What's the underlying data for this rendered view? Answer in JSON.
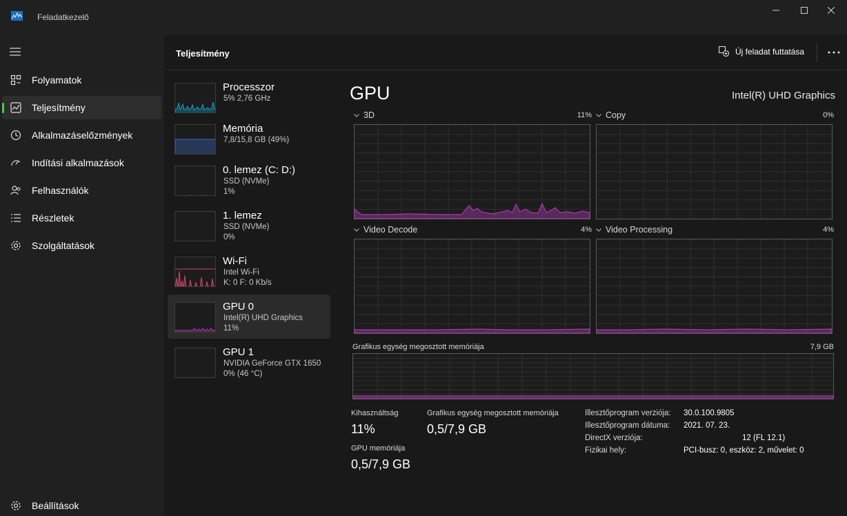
{
  "window": {
    "title": "Feladatkezelő"
  },
  "nav": {
    "items": [
      {
        "label": "Folyamatok",
        "icon": "processes-grid-icon"
      },
      {
        "label": "Teljesítmény",
        "icon": "performance-chart-icon",
        "active": true
      },
      {
        "label": "Alkalmazáselőzmények",
        "icon": "history-clock-icon"
      },
      {
        "label": "Indítási alkalmazások",
        "icon": "startup-gauge-icon"
      },
      {
        "label": "Felhasználók",
        "icon": "users-icon"
      },
      {
        "label": "Részletek",
        "icon": "details-list-icon"
      },
      {
        "label": "Szolgáltatások",
        "icon": "services-gear-icon"
      }
    ],
    "settings_label": "Beállítások"
  },
  "header": {
    "title": "Teljesítmény",
    "run_task_label": "Új feladat futtatása"
  },
  "resources": [
    {
      "name": "Processzor",
      "line1": "5% 2,76 GHz",
      "line2": ""
    },
    {
      "name": "Memória",
      "line1": "7,8/15,8 GB (49%)",
      "line2": ""
    },
    {
      "name": "0. lemez (C: D:)",
      "line1": "SSD (NVMe)",
      "line2": "1%"
    },
    {
      "name": "1. lemez",
      "line1": "SSD (NVMe)",
      "line2": "0%"
    },
    {
      "name": "Wi-Fi",
      "line1": "Intel Wi-Fi",
      "line2": "K: 0 F: 0 Kb/s"
    },
    {
      "name": "GPU 0",
      "line1": "Intel(R) UHD Graphics",
      "line2": "11%",
      "active": true
    },
    {
      "name": "GPU 1",
      "line1": "NVIDIA GeForce GTX 1650",
      "line2": "0%  (46 °C)"
    }
  ],
  "gpu": {
    "title": "GPU",
    "model": "Intel(R) UHD Graphics",
    "engines": [
      {
        "name": "3D",
        "percent": "11%"
      },
      {
        "name": "Copy",
        "percent": "0%"
      },
      {
        "name": "Video Decode",
        "percent": "4%"
      },
      {
        "name": "Video Processing",
        "percent": "4%"
      }
    ],
    "shared_memory": {
      "label": "Grafikus egység megosztott memóriája",
      "max": "7,9 GB"
    },
    "stats": {
      "utilization_label": "Kihasználtság",
      "utilization_value": "11%",
      "shared_mem_label": "Grafikus egység megosztott memóriája",
      "shared_mem_value": "0,5/7,9 GB",
      "gpu_mem_label": "GPU memóriája",
      "gpu_mem_value": "0,5/7,9 GB"
    },
    "info": [
      {
        "key": "Illesztőprogram verziója:",
        "value": "30.0.100.9805"
      },
      {
        "key": "Illesztőprogram dátuma:",
        "value": "2021. 07. 23."
      },
      {
        "key": "DirectX verziója:",
        "value": "12 (FL 12.1)"
      },
      {
        "key": "Fizikai hely:",
        "value": "PCI-busz: 0, eszköz: 2, művelet: 0"
      }
    ]
  },
  "colors": {
    "accent_active": "#4ec94e",
    "cpu_line": "#1ba1c7",
    "memory_line": "#3c6bc4",
    "disk_line": "#4ca64c",
    "wifi_line": "#c8476a",
    "gpu_line": "#a43aa8"
  }
}
